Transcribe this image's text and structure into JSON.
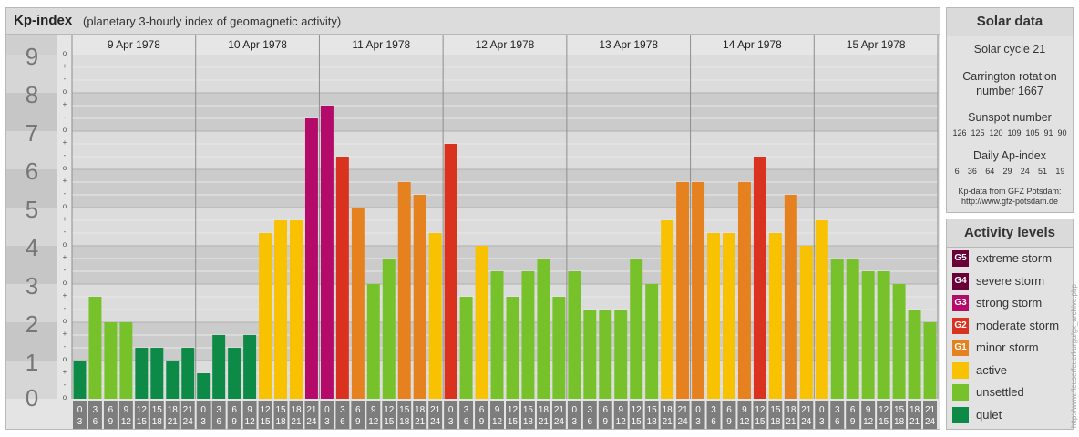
{
  "header": {
    "title": "Kp-index",
    "subtitle": "(planetary 3-hourly index of geomagnetic activity)"
  },
  "chart_data": {
    "type": "bar",
    "title": "Kp-index",
    "subtitle": "(planetary 3-hourly index of geomagnetic activity)",
    "y_ticks": [
      "9",
      "8",
      "7",
      "6",
      "5",
      "4",
      "3",
      "2",
      "1",
      "0"
    ],
    "ylim": [
      0,
      9
    ],
    "sub_ticks": [
      "o",
      "-",
      "+"
    ],
    "days": [
      "9 Apr 1978",
      "10 Apr 1978",
      "11 Apr 1978",
      "12 Apr 1978",
      "13 Apr 1978",
      "14 Apr 1978",
      "15 Apr 1978"
    ],
    "interval_labels": [
      [
        "0",
        "3"
      ],
      [
        "3",
        "6"
      ],
      [
        "6",
        "9"
      ],
      [
        "9",
        "12"
      ],
      [
        "12",
        "15"
      ],
      [
        "15",
        "18"
      ],
      [
        "18",
        "21"
      ],
      [
        "21",
        "24"
      ]
    ],
    "values": [
      1.0,
      2.667,
      2.0,
      2.0,
      1.333,
      1.333,
      1.0,
      1.333,
      0.667,
      1.667,
      1.333,
      1.667,
      4.333,
      4.667,
      4.667,
      7.333,
      7.667,
      6.333,
      5.0,
      3.0,
      3.667,
      5.667,
      5.333,
      4.333,
      6.667,
      2.667,
      4.0,
      3.333,
      2.667,
      3.333,
      3.667,
      2.667,
      3.333,
      2.333,
      2.333,
      2.333,
      3.667,
      3.0,
      4.667,
      5.667,
      5.667,
      4.333,
      4.333,
      5.667,
      6.333,
      4.333,
      5.333,
      4.0,
      4.667,
      3.667,
      3.667,
      3.333,
      3.333,
      3.0,
      2.333,
      2.0
    ],
    "levels": [
      {
        "code": "G5",
        "label": "extreme storm",
        "min": 9,
        "color": "#6b0038"
      },
      {
        "code": "G4",
        "label": "severe storm",
        "min": 8,
        "color": "#6b0038"
      },
      {
        "code": "G3",
        "label": "strong storm",
        "min": 7,
        "color": "#b40a6a"
      },
      {
        "code": "G2",
        "label": "moderate storm",
        "min": 6,
        "color": "#d9321e"
      },
      {
        "code": "G1",
        "label": "minor storm",
        "min": 5,
        "color": "#e5821f"
      },
      {
        "code": "",
        "label": "active",
        "min": 4,
        "color": "#f8c200"
      },
      {
        "code": "",
        "label": "unsettled",
        "min": 2,
        "color": "#77c22b"
      },
      {
        "code": "",
        "label": "quiet",
        "min": 0,
        "color": "#0d8a45"
      }
    ]
  },
  "solar_data": {
    "title": "Solar data",
    "cycle": "Solar cycle 21",
    "carrington_line1": "Carrington rotation",
    "carrington_line2": "number 1667",
    "sunspot_title": "Sunspot number",
    "sunspot_values": [
      "126",
      "125",
      "120",
      "109",
      "105",
      "91",
      "90"
    ],
    "ap_title": "Daily Ap-index",
    "ap_values": [
      "6",
      "36",
      "64",
      "29",
      "24",
      "51",
      "19"
    ],
    "source_line1": "Kp-data from GFZ Potsdam:",
    "source_line2": "http://www.gfz-potsdam.de"
  },
  "activity_levels": {
    "title": "Activity levels",
    "items": [
      {
        "code": "G5",
        "label": "extreme storm",
        "color": "#6b0038"
      },
      {
        "code": "G4",
        "label": "severe storm",
        "color": "#6b0038"
      },
      {
        "code": "G3",
        "label": "strong storm",
        "color": "#b40a6a"
      },
      {
        "code": "G2",
        "label": "moderate storm",
        "color": "#d9321e"
      },
      {
        "code": "G1",
        "label": "minor storm",
        "color": "#e5821f"
      },
      {
        "code": "",
        "label": "active",
        "color": "#f8c200"
      },
      {
        "code": "",
        "label": "unsettled",
        "color": "#77c22b"
      },
      {
        "code": "",
        "label": "quiet",
        "color": "#0d8a45"
      }
    ]
  },
  "watermark": "http://www.fleuserfeuerkurgu/gx_archive.php"
}
